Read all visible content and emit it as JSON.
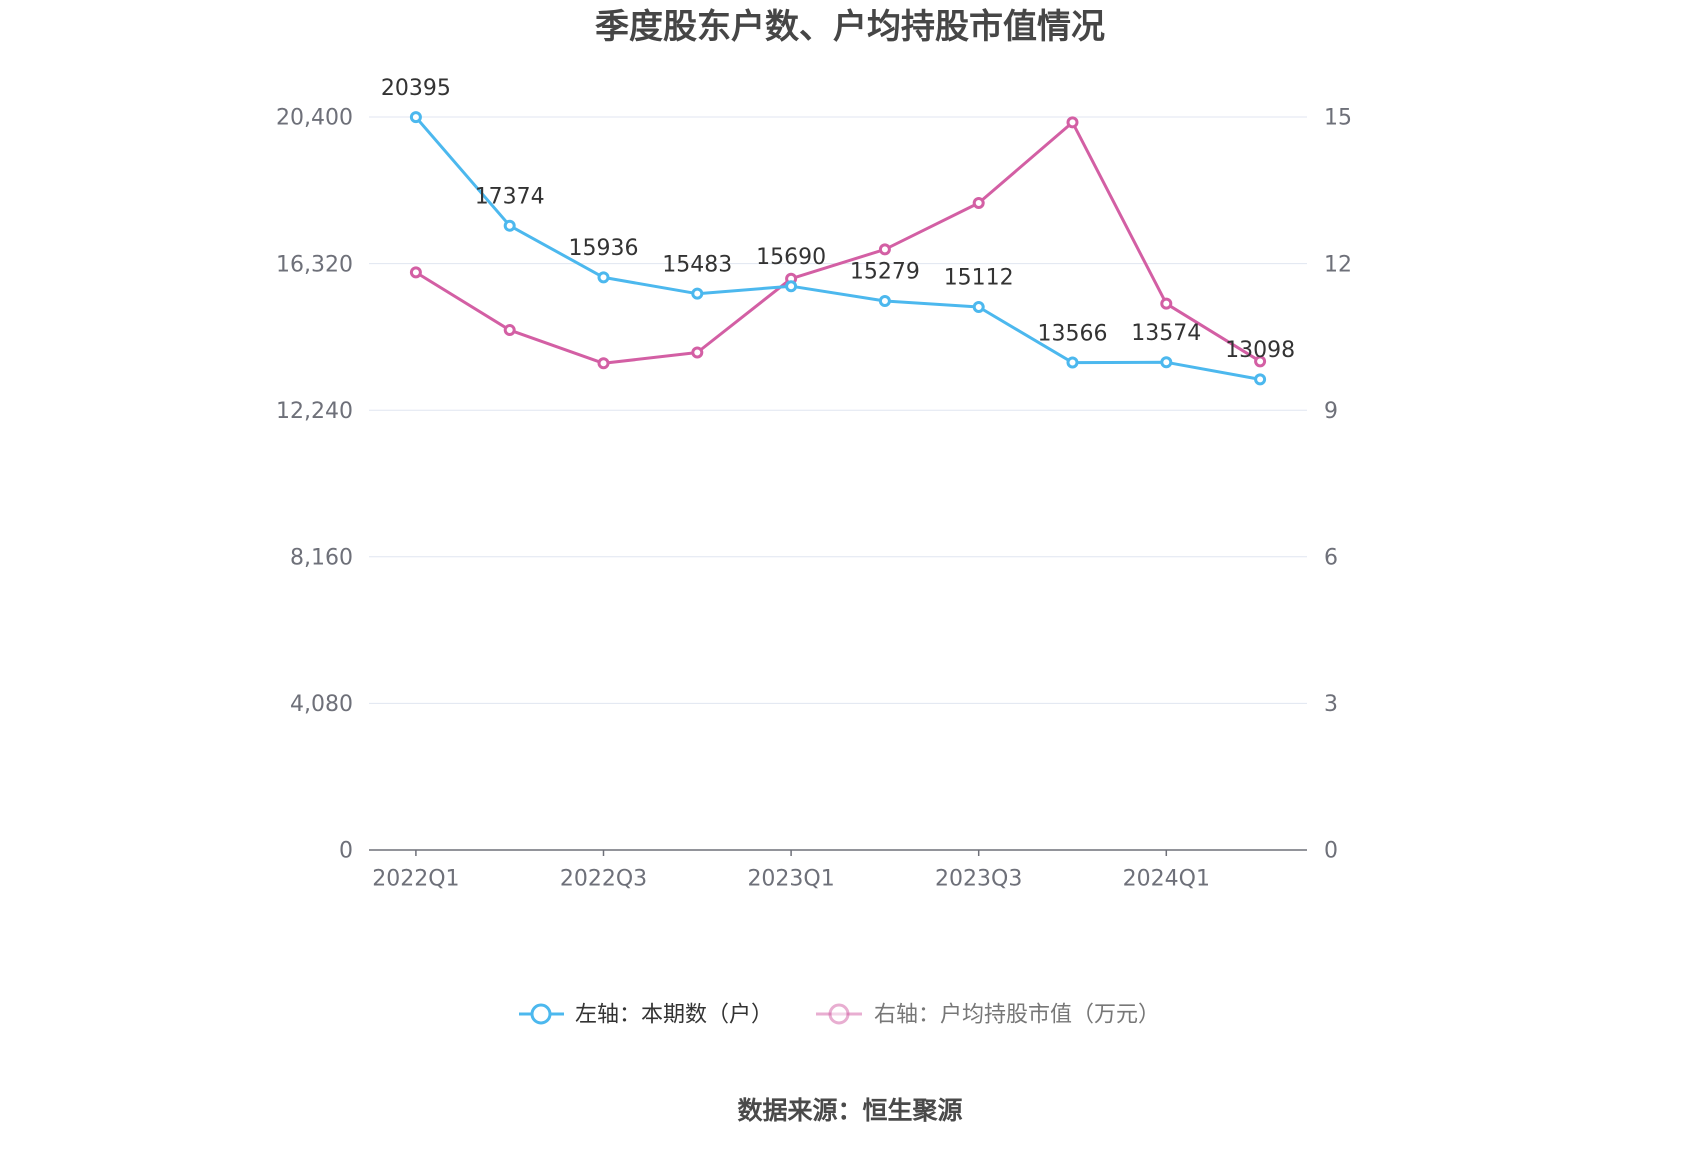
{
  "chart_data": {
    "type": "line",
    "title": "季度股东户数、户均持股市值情况",
    "categories": [
      "2022Q1",
      "",
      "2022Q3",
      "",
      "2023Q1",
      "",
      "2023Q3",
      "",
      "2024Q1",
      ""
    ],
    "y_left": {
      "ticks": [
        "0",
        "4,080",
        "8,160",
        "12,240",
        "16,320",
        "20,400"
      ],
      "ylim": [
        0,
        20400
      ]
    },
    "y_right": {
      "ticks": [
        "0",
        "3",
        "6",
        "9",
        "12",
        "15"
      ],
      "ylim": [
        0,
        15
      ]
    },
    "series": [
      {
        "name": "左轴：本期数（户）",
        "axis": "left",
        "color": "#4cb8ee",
        "show_labels": true,
        "values": [
          20395,
          17374,
          15936,
          15483,
          15690,
          15279,
          15112,
          13566,
          13574,
          13098
        ]
      },
      {
        "name": "右轴：户均持股市值（万元）",
        "axis": "right",
        "color": "#d35fa4",
        "show_labels": false,
        "values": [
          11.82,
          10.64,
          9.96,
          10.18,
          11.69,
          12.29,
          13.24,
          14.89,
          11.18,
          10.0
        ]
      }
    ],
    "grid": true,
    "legend_position": "bottom"
  },
  "source": "数据来源：恒生聚源"
}
